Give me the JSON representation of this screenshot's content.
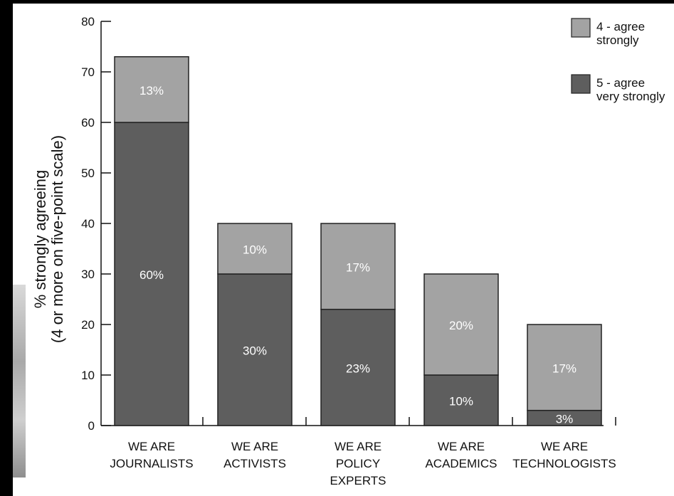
{
  "chart_data": {
    "type": "bar",
    "stacked": true,
    "categories": [
      [
        "WE ARE",
        "JOURNALISTS"
      ],
      [
        "WE ARE",
        "ACTIVISTS"
      ],
      [
        "WE ARE",
        "POLICY",
        "EXPERTS"
      ],
      [
        "WE ARE",
        "ACADEMICS"
      ],
      [
        "WE ARE",
        "TECHNOLOGISTS"
      ]
    ],
    "series": [
      {
        "name": "5 - agree very strongly",
        "legend_lines": [
          "5 - agree",
          "very strongly"
        ],
        "color": "#5e5e5e",
        "values": [
          60,
          30,
          23,
          10,
          3
        ],
        "labels": [
          "60%",
          "30%",
          "23%",
          "10%",
          "3%"
        ]
      },
      {
        "name": "4 - agree strongly",
        "legend_lines": [
          "4 - agree",
          "strongly"
        ],
        "color": "#a3a3a3",
        "values": [
          13,
          10,
          17,
          20,
          17
        ],
        "labels": [
          "13%",
          "10%",
          "17%",
          "20%",
          "17%"
        ]
      }
    ],
    "ylabel_lines": [
      "% strongly agreeing",
      "(4 or more on five-point scale)"
    ],
    "xlabel": "",
    "ylim": [
      0,
      80
    ],
    "yticks": [
      0,
      10,
      20,
      30,
      40,
      50,
      60,
      70,
      80
    ],
    "grid": false,
    "legend_position": "top-right"
  }
}
